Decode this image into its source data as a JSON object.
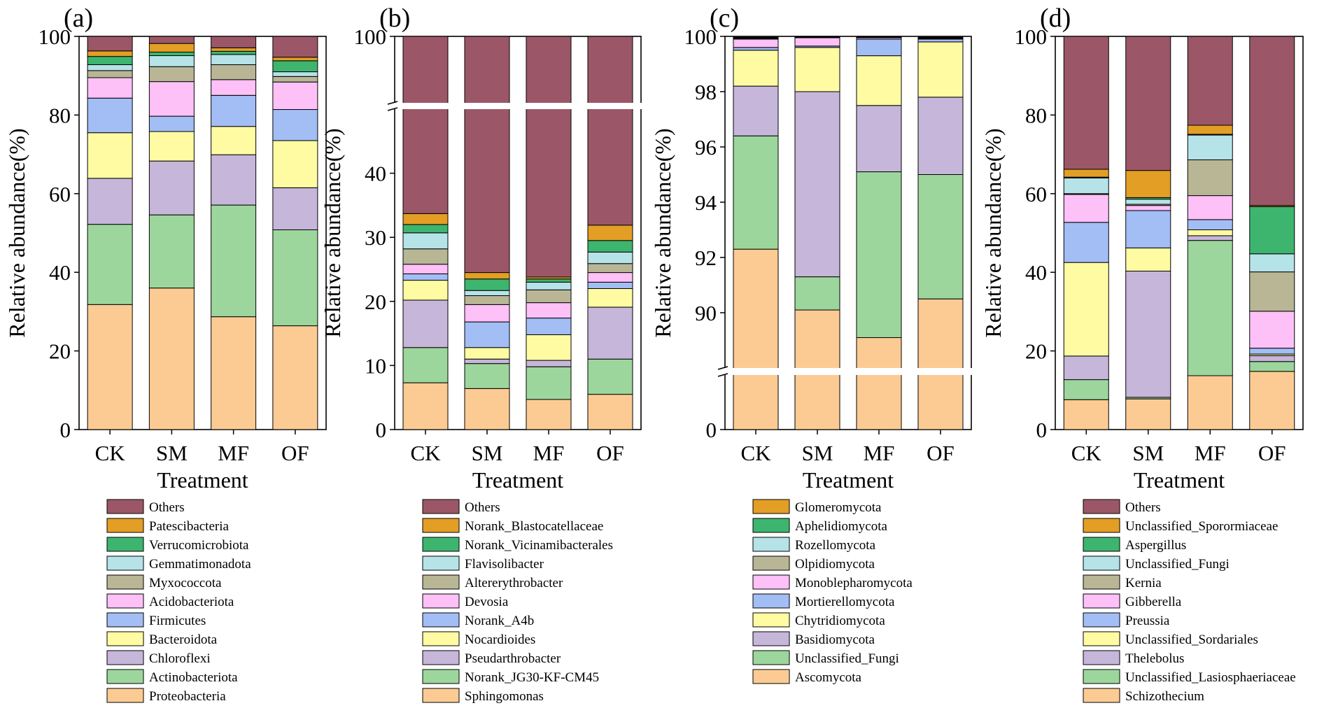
{
  "chart_data": [
    {
      "panel_label": "(a)",
      "type": "bar",
      "stacked": true,
      "xlabel": "Treatment",
      "ylabel": "Relative abundance(%)",
      "categories": [
        "CK",
        "SM",
        "MF",
        "OF"
      ],
      "ylim": [
        0,
        100
      ],
      "yticks": [
        0,
        20,
        40,
        60,
        80,
        100
      ],
      "series": [
        {
          "name": "Proteobacteria",
          "color": "#FCCB93",
          "values": [
            31.8,
            36.0,
            28.7,
            26.4
          ]
        },
        {
          "name": "Actinobacteriota",
          "color": "#9CD69C",
          "values": [
            20.4,
            18.6,
            28.4,
            24.4
          ]
        },
        {
          "name": "Chloroflexi",
          "color": "#C6B6D9",
          "values": [
            11.7,
            13.7,
            12.8,
            10.7
          ]
        },
        {
          "name": "Bacteroidota",
          "color": "#FFFBA3",
          "values": [
            11.6,
            7.5,
            7.2,
            12.0
          ]
        },
        {
          "name": "Firmicutes",
          "color": "#A3BDF5",
          "values": [
            8.8,
            3.9,
            7.9,
            7.9
          ]
        },
        {
          "name": "Acidobacteriota",
          "color": "#FDC0F7",
          "values": [
            5.2,
            8.8,
            4.0,
            7.0
          ]
        },
        {
          "name": "Myxococcota",
          "color": "#B9B696",
          "values": [
            1.8,
            3.8,
            3.8,
            1.4
          ]
        },
        {
          "name": "Gemmatimonadota",
          "color": "#B5E3E8",
          "values": [
            1.5,
            2.8,
            2.6,
            1.2
          ]
        },
        {
          "name": "Verrucomicrobiota",
          "color": "#3DB56F",
          "values": [
            2.1,
            0.9,
            0.8,
            2.8
          ]
        },
        {
          "name": "Patescibacteria",
          "color": "#E39E25",
          "values": [
            1.4,
            2.2,
            0.9,
            0.9
          ]
        },
        {
          "name": "Others",
          "color": "#9B5767",
          "values": [
            3.7,
            1.8,
            2.9,
            5.3
          ]
        }
      ]
    },
    {
      "panel_label": "(b)",
      "type": "bar",
      "stacked": true,
      "xlabel": "Treatment",
      "ylabel": "Relative abundance(%)",
      "categories": [
        "CK",
        "SM",
        "MF",
        "OF"
      ],
      "ylim": [
        0,
        100
      ],
      "axis_break": [
        50,
        90
      ],
      "yticks": [
        0,
        10,
        20,
        30,
        40,
        100
      ],
      "series": [
        {
          "name": "Sphingomonas",
          "color": "#FCCB93",
          "values": [
            7.3,
            6.4,
            4.7,
            5.5
          ]
        },
        {
          "name": "Norank_JG30-KF-CM45",
          "color": "#9CD69C",
          "values": [
            5.5,
            3.9,
            5.1,
            5.5
          ]
        },
        {
          "name": "Pseudarthrobacter",
          "color": "#C6B6D9",
          "values": [
            7.4,
            0.7,
            1.0,
            8.1
          ]
        },
        {
          "name": "Nocardioides",
          "color": "#FFFBA3",
          "values": [
            3.1,
            1.8,
            4.0,
            2.9
          ]
        },
        {
          "name": "Norank_A4b",
          "color": "#A3BDF5",
          "values": [
            1.0,
            4.0,
            2.6,
            1.0
          ]
        },
        {
          "name": "Devosia",
          "color": "#FDC0F7",
          "values": [
            1.5,
            2.7,
            2.4,
            1.5
          ]
        },
        {
          "name": "Altererythrobacter",
          "color": "#B9B696",
          "values": [
            2.4,
            1.4,
            2.0,
            1.4
          ]
        },
        {
          "name": "Flavisolibacter",
          "color": "#B5E3E8",
          "values": [
            2.5,
            0.8,
            1.2,
            1.8
          ]
        },
        {
          "name": "Norank_Vicinamibacterales",
          "color": "#3DB56F",
          "values": [
            1.3,
            1.8,
            0.5,
            1.8
          ]
        },
        {
          "name": "Norank_Blastocatellaceae",
          "color": "#E39E25",
          "values": [
            1.7,
            1.0,
            0.3,
            2.4
          ]
        },
        {
          "name": "Others",
          "color": "#9B5767",
          "values": [
            66.3,
            75.5,
            76.2,
            68.1
          ]
        }
      ]
    },
    {
      "panel_label": "(c)",
      "type": "bar",
      "stacked": true,
      "xlabel": "Treatment",
      "ylabel": "Relative abundance(%)",
      "categories": [
        "CK",
        "SM",
        "MF",
        "OF"
      ],
      "ylim": [
        0,
        100
      ],
      "axis_break": [
        2,
        88
      ],
      "yticks": [
        0,
        90,
        92,
        94,
        96,
        98,
        100
      ],
      "series": [
        {
          "name": "Ascomycota",
          "color": "#FCCB93",
          "values": [
            92.3,
            90.1,
            89.1,
            90.5
          ]
        },
        {
          "name": "Unclassified_Fungi",
          "color": "#9CD69C",
          "values": [
            4.1,
            1.2,
            6.0,
            4.5
          ]
        },
        {
          "name": "Basidiomycota",
          "color": "#C6B6D9",
          "values": [
            1.8,
            6.7,
            2.4,
            2.8
          ]
        },
        {
          "name": "Chytridiomycota",
          "color": "#FFFBA3",
          "values": [
            1.3,
            1.6,
            1.8,
            2.0
          ]
        },
        {
          "name": "Mortierellomycota",
          "color": "#A3BDF5",
          "values": [
            0.1,
            0.05,
            0.6,
            0.1
          ]
        },
        {
          "name": "Monoblepharomycota",
          "color": "#FDC0F7",
          "values": [
            0.3,
            0.3,
            0.05,
            0.02
          ]
        },
        {
          "name": "Olpidiomycota",
          "color": "#B9B696",
          "values": [
            0.03,
            0.02,
            0.02,
            0.02
          ]
        },
        {
          "name": "Rozellomycota",
          "color": "#B5E3E8",
          "values": [
            0.02,
            0.01,
            0.01,
            0.01
          ]
        },
        {
          "name": "Aphelidiomycota",
          "color": "#3DB56F",
          "values": [
            0.01,
            0.01,
            0.01,
            0.01
          ]
        },
        {
          "name": "Glomeromycota",
          "color": "#E39E25",
          "values": [
            0.01,
            0.01,
            0.01,
            0.01
          ]
        }
      ]
    },
    {
      "panel_label": "(d)",
      "type": "bar",
      "stacked": true,
      "xlabel": "Treatment",
      "ylabel": "Relative abundance(%)",
      "categories": [
        "CK",
        "SM",
        "MF",
        "OF"
      ],
      "ylim": [
        0,
        100
      ],
      "yticks": [
        0,
        20,
        40,
        60,
        80,
        100
      ],
      "series": [
        {
          "name": "Schizothecium",
          "color": "#FCCB93",
          "values": [
            7.6,
            7.8,
            13.7,
            14.8
          ]
        },
        {
          "name": "Unclassified_Lasiosphaeriaceae",
          "color": "#9CD69C",
          "values": [
            5.1,
            0.4,
            34.4,
            2.5
          ]
        },
        {
          "name": "Thelebolus",
          "color": "#C6B6D9",
          "values": [
            6.0,
            32.1,
            1.2,
            1.5
          ]
        },
        {
          "name": "Unclassified_Sordariales",
          "color": "#FFFBA3",
          "values": [
            23.8,
            5.9,
            1.5,
            0.4
          ]
        },
        {
          "name": "Preussia",
          "color": "#A3BDF5",
          "values": [
            10.2,
            9.5,
            2.6,
            1.5
          ]
        },
        {
          "name": "Gibberella",
          "color": "#FDC0F7",
          "values": [
            7.1,
            1.3,
            6.1,
            9.4
          ]
        },
        {
          "name": "Kernia",
          "color": "#B9B696",
          "values": [
            0.2,
            0.3,
            9.1,
            10.0
          ]
        },
        {
          "name": "Unclassified_Fungi",
          "color": "#B5E3E8",
          "values": [
            4.0,
            1.3,
            6.3,
            4.6
          ]
        },
        {
          "name": "Aspergillus",
          "color": "#3DB56F",
          "values": [
            0.2,
            0.4,
            0.2,
            12.0
          ]
        },
        {
          "name": "Unclassified_Sporormiaceae",
          "color": "#E39E25",
          "values": [
            2.0,
            6.9,
            2.3,
            0.3
          ]
        },
        {
          "name": "Others",
          "color": "#9B5767",
          "values": [
            33.8,
            34.1,
            22.6,
            43.0
          ]
        }
      ]
    }
  ]
}
